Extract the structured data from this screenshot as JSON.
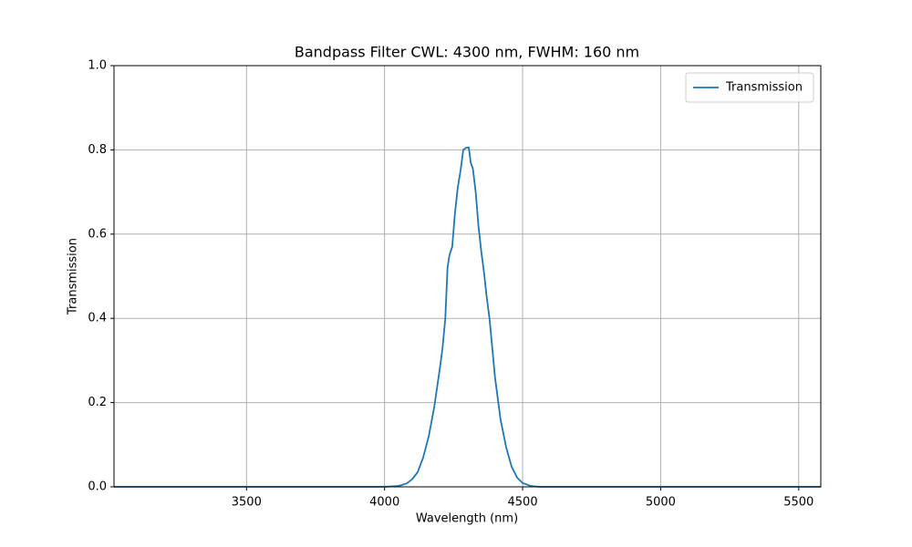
{
  "chart_data": {
    "type": "line",
    "title": "Bandpass Filter CWL: 4300 nm, FWHM: 160 nm",
    "x_label": "Wavelength (nm)",
    "y_label": "Transmission",
    "x": [
      3020,
      4000,
      4050,
      4080,
      4100,
      4120,
      4140,
      4160,
      4180,
      4200,
      4210,
      4220,
      4228,
      4235,
      4245,
      4255,
      4265,
      4275,
      4285,
      4295,
      4305,
      4312,
      4320,
      4330,
      4340,
      4350,
      4360,
      4370,
      4380,
      4390,
      4400,
      4420,
      4440,
      4460,
      4480,
      4500,
      4530,
      4560,
      4600,
      5580
    ],
    "series": [
      {
        "name": "Transmission",
        "color": "#1f77b4",
        "values": [
          0,
          0,
          0.002,
          0.008,
          0.018,
          0.035,
          0.07,
          0.12,
          0.19,
          0.28,
          0.33,
          0.4,
          0.52,
          0.55,
          0.57,
          0.65,
          0.71,
          0.75,
          0.8,
          0.805,
          0.806,
          0.77,
          0.755,
          0.7,
          0.62,
          0.56,
          0.51,
          0.45,
          0.4,
          0.33,
          0.26,
          0.16,
          0.095,
          0.048,
          0.022,
          0.009,
          0.002,
          0,
          0,
          0
        ]
      }
    ],
    "xlim": [
      3020,
      5580
    ],
    "xticks": [
      3500,
      4000,
      4500,
      5000,
      5500
    ],
    "ylim": [
      0,
      1
    ],
    "yticks": [
      {
        "value": 0,
        "label": "0.0"
      },
      0.2,
      0.4,
      0.6,
      0.8,
      {
        "value": 1,
        "label": "1.0"
      }
    ],
    "grid": true,
    "legend": "upper right"
  }
}
